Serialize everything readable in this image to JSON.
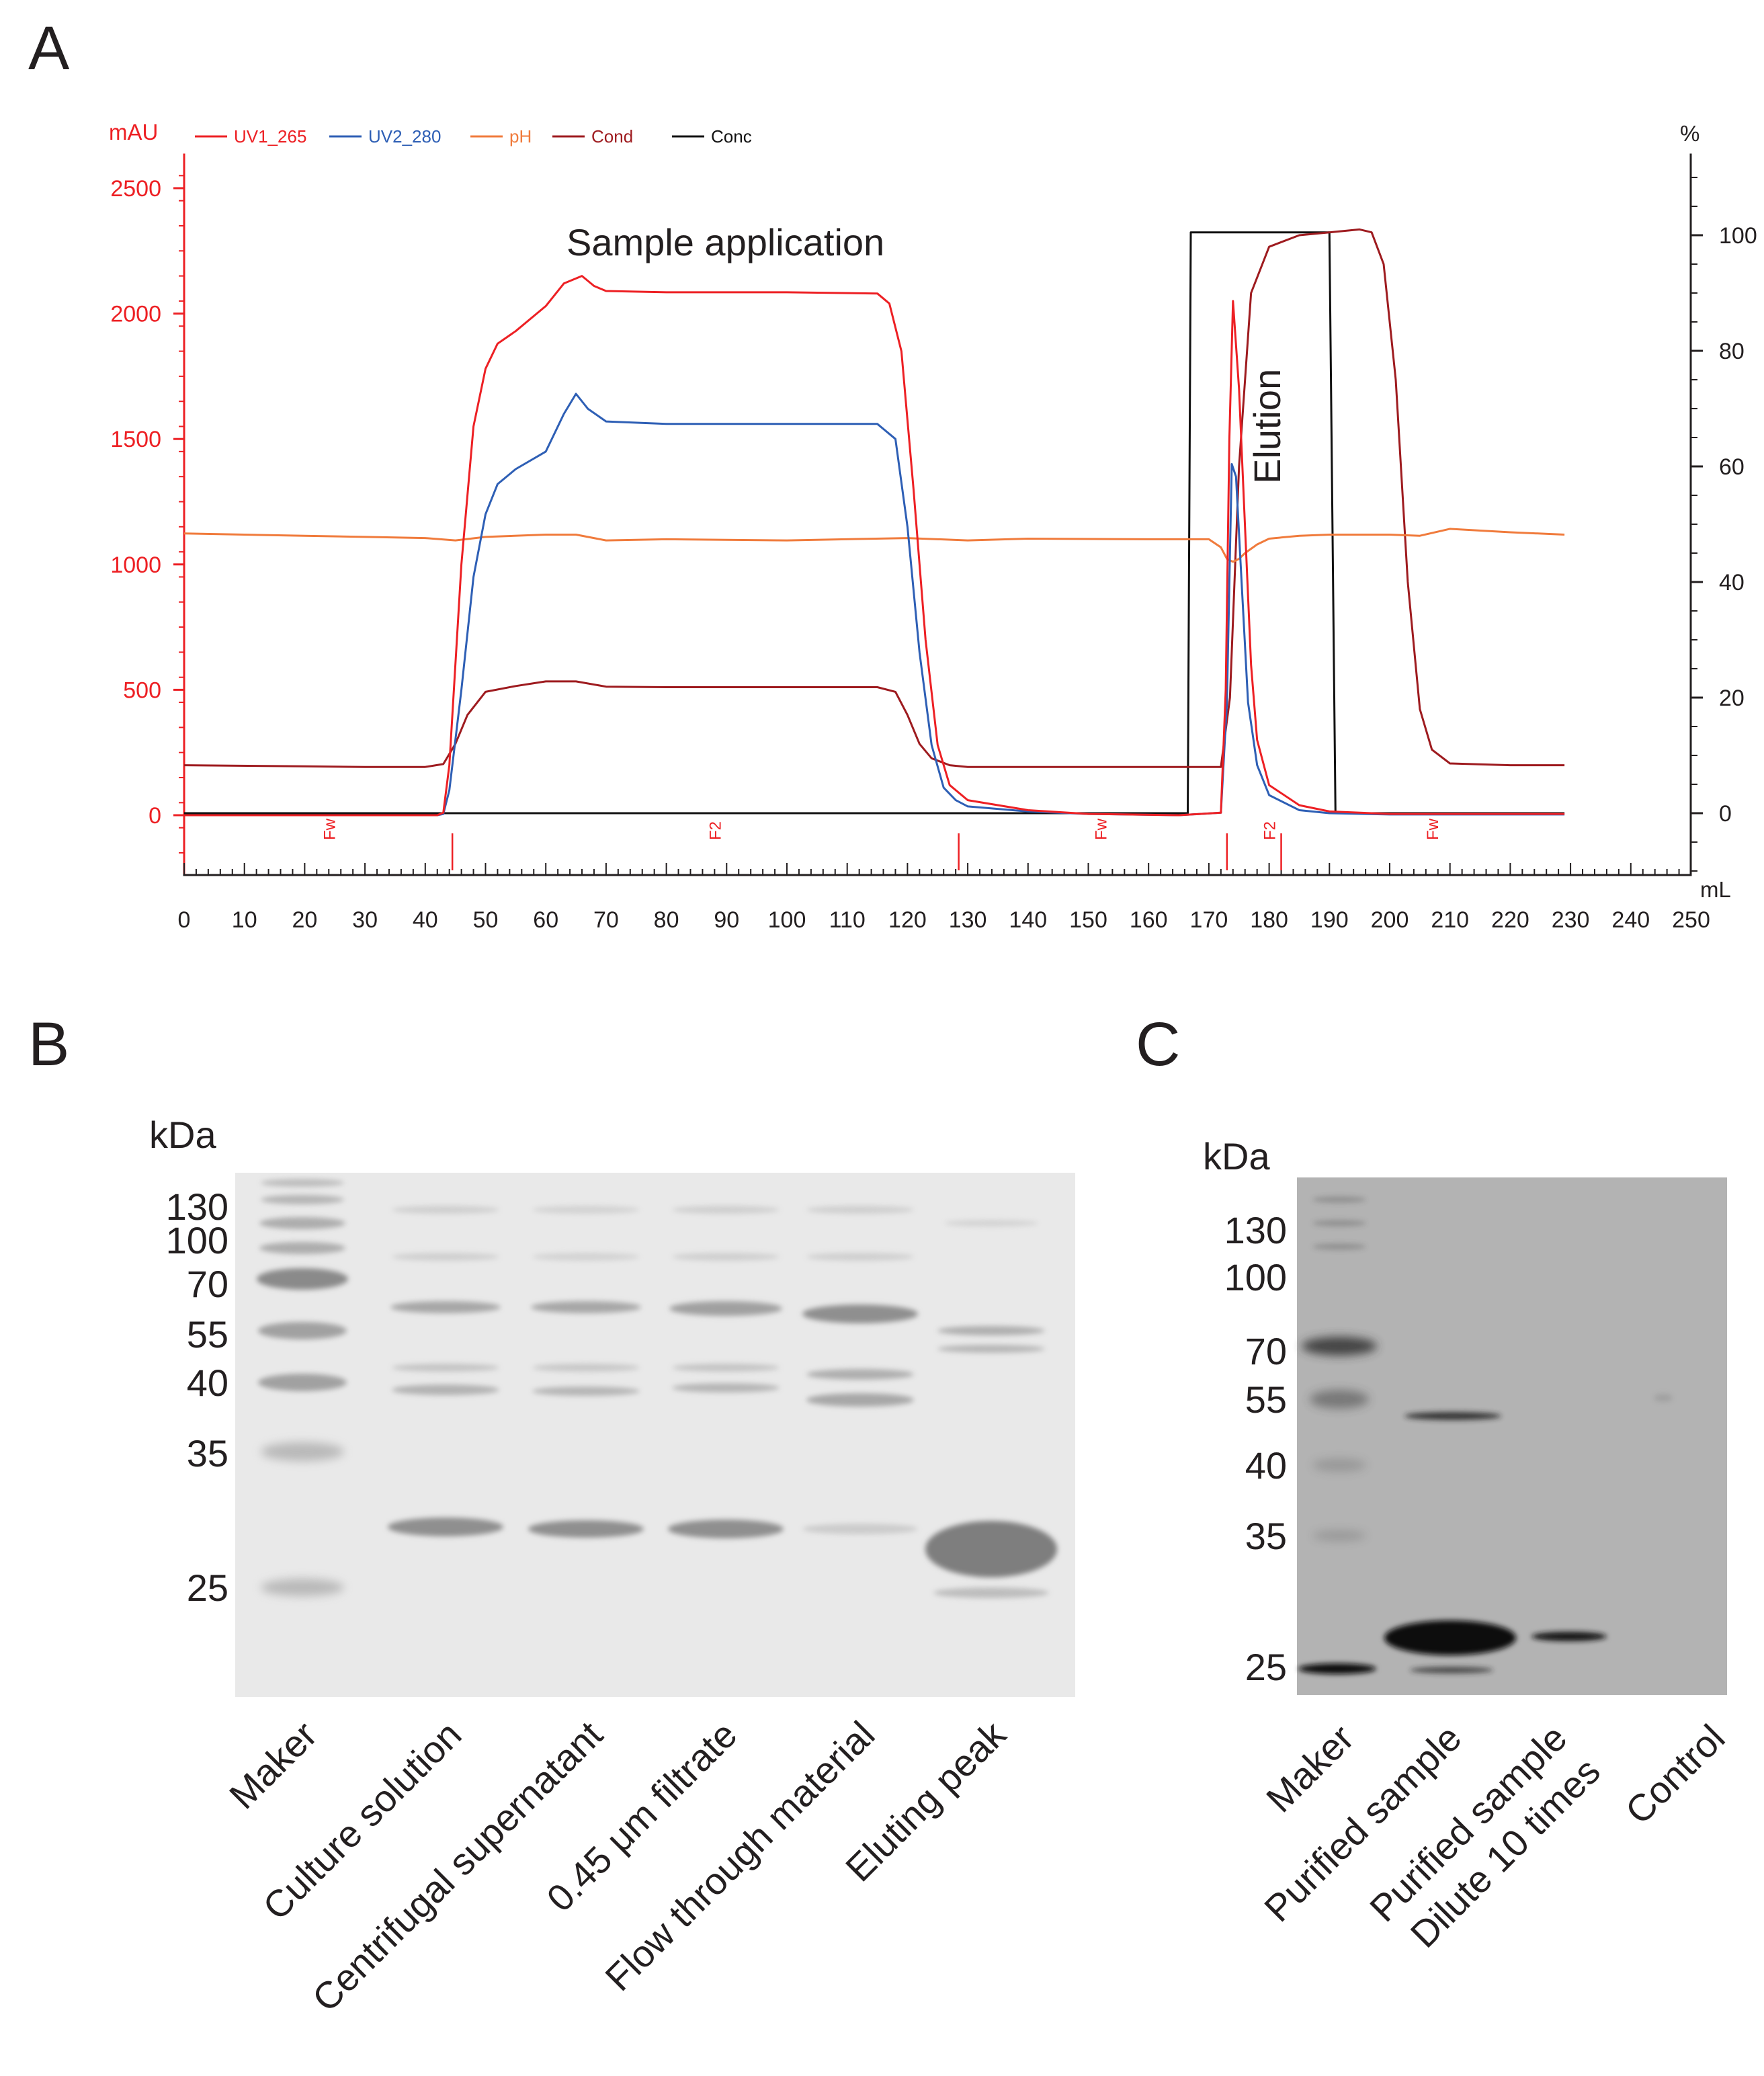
{
  "panels": {
    "a": "A",
    "b": "B",
    "c": "C"
  },
  "chromatogram": {
    "left_unit": "mAU",
    "right_unit": "%",
    "x_unit": "mL",
    "legend": [
      {
        "label": "UV1_265",
        "color": "#ed2024"
      },
      {
        "label": "UV2_280",
        "color": "#2e5fb5"
      },
      {
        "label": "pH",
        "color": "#f07b3c"
      },
      {
        "label": "Cond",
        "color": "#9e1b1f"
      },
      {
        "label": "Conc",
        "color": "#111111"
      }
    ],
    "annotations": {
      "sample": "Sample application",
      "elution": "Elution"
    },
    "fractions": [
      {
        "label": "Fw",
        "x": 24
      },
      {
        "label": "F2",
        "x": 88
      },
      {
        "label": "Fw",
        "x": 152
      },
      {
        "label": "F2",
        "x": 180
      },
      {
        "label": "Fw",
        "x": 207
      }
    ],
    "fraction_marks": [
      44.5,
      128.5,
      173,
      182
    ]
  },
  "chart_data": {
    "type": "line",
    "title": "",
    "xlabel": "mL",
    "ylabel": "mAU",
    "y2label": "%",
    "xlim": [
      0,
      250
    ],
    "ylim": [
      -300,
      2550
    ],
    "y2lim": [
      -13.8,
      110
    ],
    "xticks": [
      0,
      10,
      20,
      30,
      40,
      50,
      60,
      70,
      80,
      90,
      100,
      110,
      120,
      130,
      140,
      150,
      160,
      170,
      180,
      190,
      200,
      210,
      220,
      230,
      240,
      250
    ],
    "yticks": [
      0,
      500,
      1000,
      1500,
      2000,
      2500
    ],
    "y2ticks": [
      0,
      20,
      40,
      60,
      80,
      100
    ],
    "grid": false,
    "legend_position": "top-left",
    "series": [
      {
        "name": "UV1_265",
        "axis": "left",
        "color": "#ed2024",
        "x": [
          0,
          42,
          43,
          44,
          46,
          48,
          50,
          52,
          55,
          60,
          63,
          66,
          68,
          70,
          80,
          100,
          115,
          117,
          119,
          121,
          123,
          125,
          127,
          130,
          140,
          150,
          165,
          172,
          172.8,
          173.4,
          174,
          175,
          176,
          177,
          178,
          180,
          185,
          190,
          200,
          229
        ],
        "y": [
          0,
          0,
          10,
          200,
          1000,
          1550,
          1780,
          1880,
          1930,
          2030,
          2120,
          2150,
          2110,
          2090,
          2085,
          2085,
          2080,
          2040,
          1850,
          1300,
          700,
          280,
          120,
          60,
          20,
          5,
          0,
          10,
          500,
          1500,
          2050,
          1700,
          1150,
          600,
          300,
          120,
          40,
          15,
          5,
          5
        ]
      },
      {
        "name": "UV2_280",
        "axis": "left",
        "color": "#2e5fb5",
        "x": [
          0,
          42,
          43,
          44,
          46,
          48,
          50,
          52,
          55,
          60,
          63,
          65,
          67,
          70,
          80,
          100,
          115,
          118,
          120,
          122,
          124,
          126,
          128,
          130,
          140,
          150,
          165,
          172,
          173,
          173.8,
          174.5,
          175.5,
          176.5,
          178,
          180,
          185,
          190,
          200,
          229
        ],
        "y": [
          0,
          0,
          5,
          100,
          500,
          950,
          1200,
          1320,
          1380,
          1450,
          1600,
          1680,
          1620,
          1570,
          1560,
          1560,
          1560,
          1500,
          1150,
          650,
          280,
          110,
          60,
          35,
          15,
          5,
          0,
          10,
          450,
          1400,
          1350,
          900,
          450,
          200,
          80,
          20,
          8,
          3,
          3
        ]
      },
      {
        "name": "pH",
        "axis": "right",
        "color": "#f07b3c",
        "x": [
          0,
          10,
          20,
          30,
          40,
          45,
          50,
          60,
          65,
          70,
          80,
          100,
          120,
          130,
          140,
          160,
          170,
          172,
          173,
          174,
          175,
          176,
          178,
          180,
          185,
          190,
          200,
          205,
          210,
          220,
          229
        ],
        "y": [
          48.4,
          48.2,
          48,
          47.8,
          47.6,
          47.2,
          47.8,
          48.2,
          48.2,
          47.2,
          47.4,
          47.2,
          47.6,
          47.2,
          47.5,
          47.4,
          47.4,
          46,
          44,
          43.5,
          44,
          45,
          46.5,
          47.5,
          48,
          48.2,
          48.2,
          48,
          49.2,
          48.6,
          48.2
        ]
      },
      {
        "name": "Cond",
        "axis": "right",
        "color": "#9e1b1f",
        "x": [
          0,
          20,
          30,
          40,
          43,
          45,
          47,
          50,
          55,
          60,
          65,
          70,
          80,
          100,
          115,
          118,
          120,
          122,
          124,
          127,
          130,
          140,
          160,
          172,
          173.5,
          175,
          177,
          180,
          185,
          190,
          195,
          197,
          199,
          201,
          203,
          205,
          207,
          210,
          220,
          229
        ],
        "y": [
          8.3,
          8.1,
          8.0,
          8.0,
          8.5,
          12,
          17,
          21,
          22,
          22.8,
          22.8,
          21.9,
          21.8,
          21.8,
          21.8,
          21,
          17,
          12,
          9.5,
          8.3,
          8.0,
          8.0,
          8.0,
          8.0,
          20,
          60,
          90,
          98,
          100,
          100.5,
          101,
          100.5,
          95,
          75,
          40,
          18,
          11,
          8.6,
          8.3,
          8.3
        ]
      },
      {
        "name": "Conc",
        "axis": "right",
        "color": "#111111",
        "x": [
          0,
          166.5,
          167,
          190,
          191,
          229
        ],
        "y": [
          0,
          0,
          100.5,
          100.5,
          0,
          0
        ]
      }
    ]
  },
  "gel_b": {
    "unit": "kDa",
    "markers": [
      "130",
      "100",
      "70",
      "55",
      "40",
      "35",
      "25"
    ],
    "lanes": [
      "Maker",
      "Culture solution",
      "Centrifugal supernatant",
      "0.45 μm filtrate",
      "Flow through material",
      "Eluting peak"
    ]
  },
  "blot_c": {
    "unit": "kDa",
    "markers": [
      "130",
      "100",
      "70",
      "55",
      "40",
      "35",
      "25"
    ],
    "lanes": [
      {
        "lines": [
          "Maker"
        ]
      },
      {
        "lines": [
          "Purified sample"
        ]
      },
      {
        "lines": [
          "Purified sample",
          "Dilute 10 times"
        ]
      },
      {
        "lines": [
          "Control"
        ]
      }
    ]
  }
}
